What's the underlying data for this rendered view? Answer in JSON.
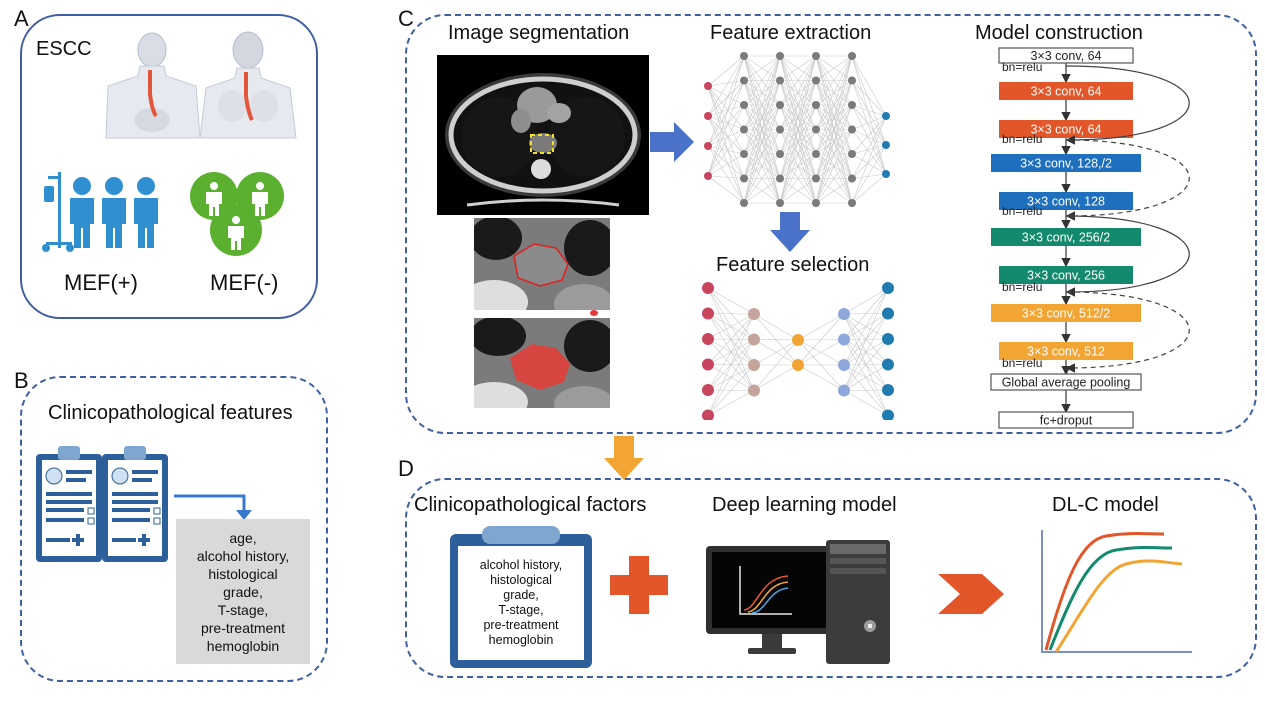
{
  "panelA": {
    "letter": "A",
    "label": "ESCC",
    "mef_pos": "MEF(+)",
    "mef_neg": "MEF(-)"
  },
  "panelB": {
    "letter": "B",
    "title": "Clinicopathological features",
    "features": [
      "age,",
      "alcohol history,",
      "histological",
      "grade,",
      "T-stage,",
      "pre-treatment",
      "hemoglobin"
    ]
  },
  "panelC": {
    "letter": "C",
    "seg_title": "Image segmentation",
    "ext_title": "Feature extraction",
    "sel_title": "Feature selection",
    "model_title": "Model construction",
    "blocks": [
      {
        "label": "3×3 conv,  64",
        "color": "#ffffff"
      },
      {
        "label": "3×3 conv, 64",
        "color": "#e2562a"
      },
      {
        "label": "3×3 conv, 64",
        "color": "#e2562a"
      },
      {
        "label": "3×3 conv, 128,/2",
        "color": "#1f6fbf"
      },
      {
        "label": "3×3 conv, 128",
        "color": "#1f6fbf"
      },
      {
        "label": "3×3 conv, 256/2",
        "color": "#138a6d"
      },
      {
        "label": "3×3 conv, 256",
        "color": "#138a6d"
      },
      {
        "label": "3×3 conv, 512/2",
        "color": "#f2a533"
      },
      {
        "label": "3×3 conv, 512",
        "color": "#f2a533"
      },
      {
        "label": "Global average pooling",
        "color": "#ffffff"
      },
      {
        "label": "fc+droput",
        "color": "#ffffff"
      }
    ],
    "bn": "bn=relu"
  },
  "panelD": {
    "letter": "D",
    "cp_title": "Clinicopathological factors",
    "dl_title": "Deep learning model",
    "dlc_title": "DL-C model",
    "factors": [
      "alcohol history,",
      "histological",
      "grade,",
      "T-stage,",
      "pre-treatment",
      "hemoglobin"
    ]
  },
  "colors": {
    "border": "#3f5fa5",
    "orange": "#e2562a",
    "blue": "#4a72c9",
    "arrow_orange": "#f2a533",
    "green": "#5cb030"
  }
}
